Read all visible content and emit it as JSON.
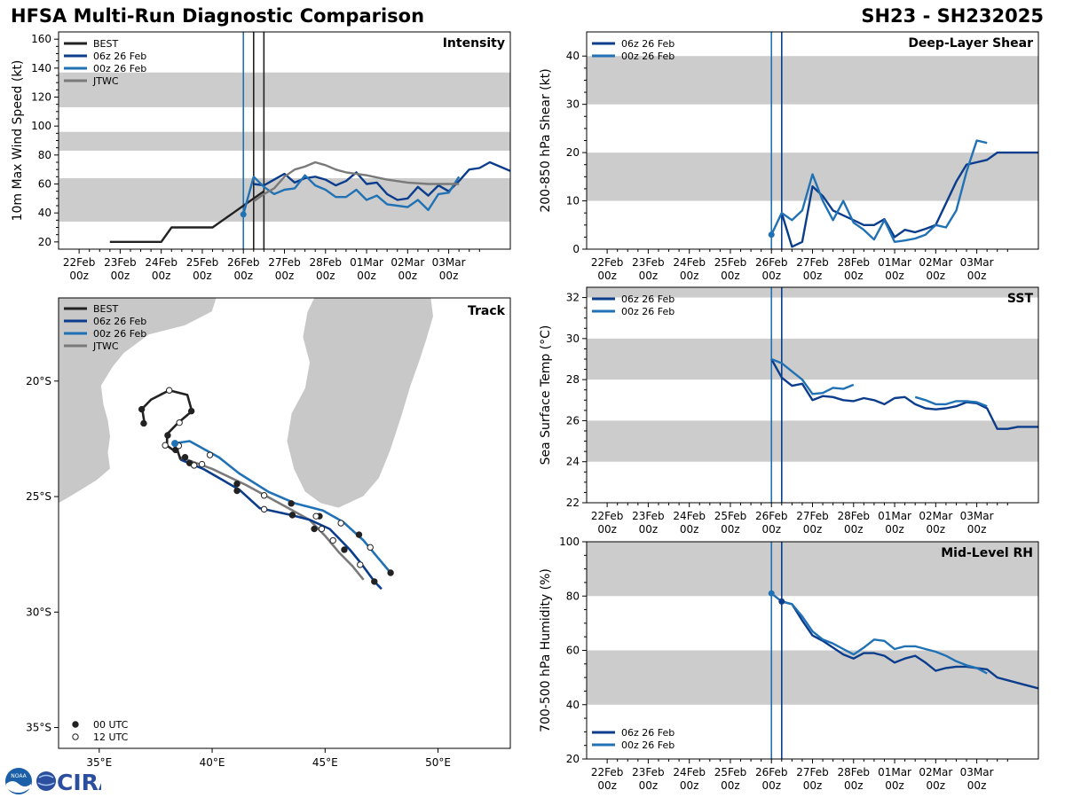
{
  "header": {
    "title_left": "HFSA Multi-Run Diagnostic Comparison",
    "title_right": "SH23 - SH232025"
  },
  "logo": {
    "text": "CIRA",
    "badge": "NOAA"
  },
  "colors": {
    "best": "#222222",
    "run06": "#0b3d8c",
    "run00": "#2171b5",
    "jtwc": "#7a7a7a",
    "band": "#cccccc"
  },
  "time_ticks": [
    "22Feb",
    "23Feb",
    "24Feb",
    "25Feb",
    "26Feb",
    "27Feb",
    "28Feb",
    "01Mar",
    "02Mar",
    "03Mar"
  ],
  "time_sub": "00z",
  "chart_data": [
    {
      "id": "intensity",
      "type": "line",
      "title": "Intensity",
      "ylabel": "10m Max Wind Speed (kt)",
      "ylim": [
        15,
        165
      ],
      "xlim": [
        -0.5,
        10.5
      ],
      "yticks": [
        20,
        40,
        60,
        80,
        100,
        120,
        140,
        160
      ],
      "bands": [
        [
          34,
          64
        ],
        [
          83,
          96
        ],
        [
          113,
          137
        ]
      ],
      "vlines": [
        {
          "x": 4.0,
          "color": "run00"
        },
        {
          "x": 4.25,
          "color": "best"
        },
        {
          "x": 4.5,
          "color": "best"
        }
      ],
      "legend": [
        "BEST",
        "06z 26 Feb",
        "00z 26 Feb",
        "JTWC"
      ],
      "series": [
        {
          "name": "BEST",
          "color": "best",
          "x": [
            0.75,
            1,
            1.25,
            1.5,
            1.75,
            2,
            2.25,
            2.5,
            2.75,
            3,
            3.25,
            3.5,
            3.75,
            4,
            4.25,
            4.5
          ],
          "y": [
            20,
            20,
            20,
            20,
            20,
            20,
            30,
            30,
            30,
            30,
            30,
            35,
            40,
            45,
            50,
            55
          ]
        },
        {
          "name": "06z 26 Feb",
          "color": "run06",
          "x": [
            4.25,
            4.5,
            4.75,
            5,
            5.25,
            5.5,
            5.75,
            6,
            6.25,
            6.5,
            6.75,
            7,
            7.25,
            7.5,
            7.75,
            8,
            8.25,
            8.5,
            8.75,
            9,
            9.25,
            9.5,
            9.75,
            10,
            10.25,
            10.5
          ],
          "y": [
            60,
            59,
            63,
            67,
            61,
            64,
            65,
            63,
            59,
            62,
            68,
            60,
            61,
            53,
            49,
            50,
            58,
            52,
            59,
            55,
            62,
            70,
            71,
            75,
            72,
            69
          ]
        },
        {
          "name": "00z 26 Feb",
          "color": "run00",
          "x": [
            4,
            4.25,
            4.5,
            4.75,
            5,
            5.25,
            5.5,
            5.75,
            6,
            6.25,
            6.5,
            6.75,
            7,
            7.25,
            7.5,
            7.75,
            8,
            8.25,
            8.5,
            8.75,
            9,
            9.25
          ],
          "y": [
            39,
            65,
            58,
            53,
            56,
            57,
            66,
            59,
            56,
            51,
            51,
            56,
            49,
            52,
            46,
            45,
            44,
            49,
            42,
            53,
            54,
            65
          ]
        },
        {
          "name": "JTWC",
          "color": "jtwc",
          "x": [
            4.25,
            4.5,
            4.75,
            5,
            5.25,
            5.5,
            5.75,
            6,
            6.25,
            6.5,
            7,
            7.5,
            8,
            8.5,
            9,
            9.25
          ],
          "y": [
            48,
            53,
            57,
            65,
            70,
            72,
            75,
            73,
            70,
            68,
            66,
            63,
            61,
            60,
            60,
            60
          ]
        }
      ],
      "markers": [
        {
          "x": 4,
          "y": 39,
          "color": "run00"
        }
      ]
    },
    {
      "id": "shear",
      "type": "line",
      "title": "Deep-Layer Shear",
      "ylabel": "200-850 hPa Shear (kt)",
      "ylim": [
        0,
        45
      ],
      "xlim": [
        -0.5,
        10.5
      ],
      "yticks": [
        0,
        10,
        20,
        30,
        40
      ],
      "bands": [
        [
          10,
          20
        ],
        [
          30,
          40
        ]
      ],
      "vlines": [
        {
          "x": 4.0,
          "color": "run00"
        },
        {
          "x": 4.25,
          "color": "run06"
        }
      ],
      "legend": [
        "06z 26 Feb",
        "00z 26 Feb"
      ],
      "series": [
        {
          "name": "06z 26 Feb",
          "color": "run06",
          "x": [
            4.25,
            4.5,
            4.75,
            5,
            5.25,
            5.5,
            5.75,
            6,
            6.25,
            6.5,
            6.75,
            7,
            7.25,
            7.5,
            7.75,
            8,
            8.25,
            8.5,
            8.75,
            9,
            9.25,
            9.5,
            9.75,
            10,
            10.25,
            10.5
          ],
          "y": [
            7.5,
            0.5,
            1.5,
            13,
            11,
            8,
            7,
            6,
            5,
            5,
            6.2,
            2.5,
            4,
            3.5,
            4.2,
            5,
            9.5,
            14,
            17.5,
            18,
            18.5,
            20,
            20,
            20,
            20,
            20
          ]
        },
        {
          "name": "00z 26 Feb",
          "color": "run00",
          "x": [
            4,
            4.25,
            4.5,
            4.75,
            5,
            5.25,
            5.5,
            5.75,
            6,
            6.25,
            6.5,
            6.75,
            7,
            7.25,
            7.5,
            7.75,
            8,
            8.25,
            8.5,
            8.75,
            9,
            9.25
          ],
          "y": [
            3,
            7.5,
            6,
            8,
            15.5,
            10,
            6,
            10,
            5.5,
            4,
            2,
            6,
            1.5,
            1.8,
            2.2,
            3,
            5,
            4.5,
            8,
            16,
            22.5,
            22
          ]
        }
      ],
      "markers": [
        {
          "x": 4,
          "y": 3,
          "color": "run00"
        }
      ]
    },
    {
      "id": "sst",
      "type": "line",
      "title": "SST",
      "ylabel": "Sea Surface Temp (°C)",
      "ylim": [
        22,
        32.5
      ],
      "xlim": [
        -0.5,
        10.5
      ],
      "yticks": [
        22,
        24,
        26,
        28,
        30,
        32
      ],
      "bands": [
        [
          24,
          26
        ],
        [
          28,
          30
        ],
        [
          32,
          33
        ]
      ],
      "vlines": [
        {
          "x": 4.0,
          "color": "run00"
        },
        {
          "x": 4.25,
          "color": "run06"
        }
      ],
      "legend": [
        "06z 26 Feb",
        "00z 26 Feb"
      ],
      "series": [
        {
          "name": "06z 26 Feb",
          "color": "run06",
          "x": [
            4,
            4.25,
            4.5,
            4.75,
            5,
            5.25,
            5.5,
            5.75,
            6,
            6.25,
            6.5,
            6.75,
            7,
            7.25,
            7.5,
            7.75,
            8,
            8.25,
            8.5,
            8.75,
            9,
            9.25,
            9.5,
            9.75,
            10,
            10.25,
            10.5
          ],
          "y": [
            29,
            28.1,
            27.7,
            27.8,
            27,
            27.2,
            27.15,
            27,
            26.95,
            27.1,
            27,
            26.8,
            27.1,
            27.15,
            26.8,
            26.6,
            26.55,
            26.6,
            26.7,
            26.9,
            26.85,
            26.6,
            25.6,
            25.6,
            25.7,
            25.7,
            25.7
          ]
        },
        {
          "name": "00z 26 Feb",
          "color": "run00",
          "x": [
            4,
            4.25,
            4.5,
            4.75,
            5,
            5.25,
            5.5,
            5.75,
            6
          ],
          "y": [
            29,
            28.8,
            28.4,
            28,
            27.3,
            27.35,
            27.6,
            27.55,
            27.75
          ]
        },
        {
          "name": "00z 26 Feb seg2",
          "color": "run00",
          "x": [
            7.5,
            7.75,
            8,
            8.25,
            8.5,
            8.75,
            9,
            9.25
          ],
          "y": [
            27.15,
            27,
            26.8,
            26.8,
            26.95,
            26.95,
            26.9,
            26.7
          ]
        }
      ],
      "markers": []
    },
    {
      "id": "rh",
      "type": "line",
      "title": "Mid-Level RH",
      "ylabel": "700-500 hPa Humidity (%)",
      "ylim": [
        20,
        100
      ],
      "xlim": [
        -0.5,
        10.5
      ],
      "yticks": [
        20,
        40,
        60,
        80,
        100
      ],
      "bands": [
        [
          40,
          60
        ],
        [
          80,
          100
        ]
      ],
      "vlines": [
        {
          "x": 4.0,
          "color": "run00"
        },
        {
          "x": 4.25,
          "color": "run06"
        }
      ],
      "legend": [
        "06z 26 Feb",
        "00z 26 Feb"
      ],
      "series": [
        {
          "name": "06z 26 Feb",
          "color": "run06",
          "x": [
            4.25,
            4.5,
            4.75,
            5,
            5.25,
            5.5,
            5.75,
            6,
            6.25,
            6.5,
            6.75,
            7,
            7.25,
            7.5,
            7.75,
            8,
            8.25,
            8.5,
            8.75,
            9,
            9.25,
            9.5,
            9.75,
            10,
            10.25,
            10.5
          ],
          "y": [
            78,
            77,
            71,
            65.5,
            63.5,
            61,
            58.5,
            57,
            59,
            59,
            58,
            55.5,
            57,
            58,
            55.5,
            52.5,
            53.5,
            54,
            54,
            53.5,
            53,
            50,
            49,
            48,
            47,
            46
          ]
        },
        {
          "name": "00z 26 Feb",
          "color": "run00",
          "x": [
            4,
            4.25,
            4.5,
            4.75,
            5,
            5.25,
            5.5,
            5.75,
            6,
            6.25,
            6.5,
            6.75,
            7,
            7.25,
            7.5,
            7.75,
            8,
            8.25,
            8.5,
            8.75,
            9,
            9.25
          ],
          "y": [
            81,
            78,
            77,
            72.5,
            67,
            64,
            62.5,
            60.5,
            58.5,
            61,
            64,
            63.5,
            60.5,
            61.5,
            61.5,
            60.5,
            59.5,
            58,
            56,
            54.5,
            53.5,
            51.5
          ]
        }
      ],
      "markers": [
        {
          "x": 4,
          "y": 81,
          "color": "run00"
        },
        {
          "x": 4.25,
          "y": 78,
          "color": "run06"
        }
      ]
    },
    {
      "id": "track",
      "type": "scatter",
      "title": "Track",
      "xlim": [
        33.2,
        53.2
      ],
      "ylim": [
        -35.9,
        -16.4
      ],
      "xticks": [
        {
          "v": 35,
          "label": "35°E"
        },
        {
          "v": 40,
          "label": "40°E"
        },
        {
          "v": 45,
          "label": "45°E"
        },
        {
          "v": 50,
          "label": "50°E"
        }
      ],
      "yticks": [
        {
          "v": -20,
          "label": "20°S"
        },
        {
          "v": -25,
          "label": "25°S"
        },
        {
          "v": -30,
          "label": "30°S"
        },
        {
          "v": -35,
          "label": "35°S"
        }
      ],
      "legend": [
        "BEST",
        "06z 26 Feb",
        "00z 26 Feb",
        "JTWC"
      ],
      "legend_markers": [
        "00 UTC",
        "12 UTC"
      ],
      "best": {
        "lon": [
          37.0,
          36.9,
          37.3,
          38.1,
          38.9,
          39.1,
          38.5,
          38.0,
          38.0,
          38.3,
          38.4,
          38.6
        ],
        "lat": [
          -21.8,
          -21.2,
          -20.8,
          -20.4,
          -20.6,
          -21.3,
          -21.8,
          -22.3,
          -22.8,
          -23.0,
          -22.8,
          -23.4
        ]
      },
      "best_00": [
        [
          36.97,
          -21.83
        ],
        [
          36.88,
          -21.22
        ],
        [
          39.08,
          -21.3
        ],
        [
          38.03,
          -22.35
        ],
        [
          38.38,
          -22.98
        ]
      ],
      "best_12": [
        [
          38.1,
          -20.4
        ],
        [
          38.55,
          -21.8
        ],
        [
          37.92,
          -22.78
        ],
        [
          38.52,
          -22.8
        ]
      ],
      "run06": {
        "lon": [
          38.6,
          39.6,
          41.2,
          42.1,
          43.5,
          44.3,
          45.2,
          45.6,
          46.1,
          46.6,
          47.2,
          47.5
        ],
        "lat": [
          -23.4,
          -23.8,
          -24.7,
          -25.5,
          -25.8,
          -26.0,
          -26.4,
          -26.8,
          -27.3,
          -27.9,
          -28.7,
          -29.0
        ]
      },
      "run06_00": [
        [
          41.1,
          -24.75
        ],
        [
          43.55,
          -25.8
        ],
        [
          45.85,
          -27.3
        ],
        [
          47.18,
          -28.68
        ]
      ],
      "run06_12": [
        [
          42.3,
          -25.55
        ],
        [
          45.35,
          -26.9
        ],
        [
          46.55,
          -27.95
        ]
      ],
      "run00": {
        "lon": [
          38.3,
          39.0,
          40.3,
          41.2,
          42.5,
          43.7,
          44.9,
          45.8,
          46.7,
          47.3,
          47.9
        ],
        "lat": [
          -22.7,
          -22.6,
          -23.3,
          -24.0,
          -24.8,
          -25.3,
          -25.6,
          -26.1,
          -26.9,
          -27.6,
          -28.3
        ]
      },
      "run00_00": [
        [
          38.35,
          -22.7
        ],
        [
          41.1,
          -24.45
        ],
        [
          43.5,
          -25.3
        ],
        [
          44.75,
          -25.85
        ],
        [
          46.5,
          -26.65
        ],
        [
          47.9,
          -28.3
        ]
      ],
      "run00_12": [
        [
          39.9,
          -23.2
        ],
        [
          42.3,
          -24.95
        ],
        [
          44.6,
          -25.85
        ],
        [
          45.7,
          -26.15
        ],
        [
          47.0,
          -27.2
        ]
      ],
      "jtwc": {
        "lon": [
          38.6,
          40.0,
          41.5,
          43.0,
          44.3,
          45.0,
          45.6,
          46.2,
          46.7
        ],
        "lat": [
          -23.3,
          -23.8,
          -24.5,
          -25.3,
          -26.0,
          -26.7,
          -27.4,
          -28.0,
          -28.6
        ]
      },
      "jtwc_00": [
        [
          38.8,
          -23.3
        ],
        [
          39.0,
          -23.55
        ],
        [
          44.52,
          -26.4
        ]
      ],
      "jtwc_12": [
        [
          39.2,
          -23.65
        ],
        [
          39.55,
          -23.6
        ],
        [
          44.85,
          -26.4
        ]
      ]
    }
  ]
}
